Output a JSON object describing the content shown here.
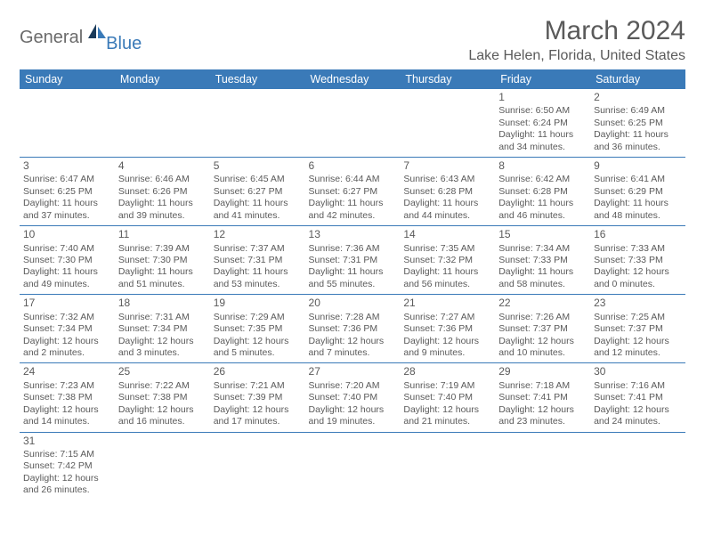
{
  "brand": {
    "general": "General",
    "blue": "Blue"
  },
  "title": "March 2024",
  "location": "Lake Helen, Florida, United States",
  "day_headers": [
    "Sunday",
    "Monday",
    "Tuesday",
    "Wednesday",
    "Thursday",
    "Friday",
    "Saturday"
  ],
  "colors": {
    "header_bg": "#3a7ab8",
    "header_fg": "#ffffff",
    "border": "#3a7ab8",
    "text": "#5a5a5a",
    "logo_gray": "#6b6b6b",
    "logo_blue": "#3a7ab8",
    "logo_dark": "#1a3a5a"
  },
  "first_weekday": 5,
  "days": [
    {
      "n": 1,
      "sunrise": "6:50 AM",
      "sunset": "6:24 PM",
      "daylight": "11 hours and 34 minutes."
    },
    {
      "n": 2,
      "sunrise": "6:49 AM",
      "sunset": "6:25 PM",
      "daylight": "11 hours and 36 minutes."
    },
    {
      "n": 3,
      "sunrise": "6:47 AM",
      "sunset": "6:25 PM",
      "daylight": "11 hours and 37 minutes."
    },
    {
      "n": 4,
      "sunrise": "6:46 AM",
      "sunset": "6:26 PM",
      "daylight": "11 hours and 39 minutes."
    },
    {
      "n": 5,
      "sunrise": "6:45 AM",
      "sunset": "6:27 PM",
      "daylight": "11 hours and 41 minutes."
    },
    {
      "n": 6,
      "sunrise": "6:44 AM",
      "sunset": "6:27 PM",
      "daylight": "11 hours and 42 minutes."
    },
    {
      "n": 7,
      "sunrise": "6:43 AM",
      "sunset": "6:28 PM",
      "daylight": "11 hours and 44 minutes."
    },
    {
      "n": 8,
      "sunrise": "6:42 AM",
      "sunset": "6:28 PM",
      "daylight": "11 hours and 46 minutes."
    },
    {
      "n": 9,
      "sunrise": "6:41 AM",
      "sunset": "6:29 PM",
      "daylight": "11 hours and 48 minutes."
    },
    {
      "n": 10,
      "sunrise": "7:40 AM",
      "sunset": "7:30 PM",
      "daylight": "11 hours and 49 minutes."
    },
    {
      "n": 11,
      "sunrise": "7:39 AM",
      "sunset": "7:30 PM",
      "daylight": "11 hours and 51 minutes."
    },
    {
      "n": 12,
      "sunrise": "7:37 AM",
      "sunset": "7:31 PM",
      "daylight": "11 hours and 53 minutes."
    },
    {
      "n": 13,
      "sunrise": "7:36 AM",
      "sunset": "7:31 PM",
      "daylight": "11 hours and 55 minutes."
    },
    {
      "n": 14,
      "sunrise": "7:35 AM",
      "sunset": "7:32 PM",
      "daylight": "11 hours and 56 minutes."
    },
    {
      "n": 15,
      "sunrise": "7:34 AM",
      "sunset": "7:33 PM",
      "daylight": "11 hours and 58 minutes."
    },
    {
      "n": 16,
      "sunrise": "7:33 AM",
      "sunset": "7:33 PM",
      "daylight": "12 hours and 0 minutes."
    },
    {
      "n": 17,
      "sunrise": "7:32 AM",
      "sunset": "7:34 PM",
      "daylight": "12 hours and 2 minutes."
    },
    {
      "n": 18,
      "sunrise": "7:31 AM",
      "sunset": "7:34 PM",
      "daylight": "12 hours and 3 minutes."
    },
    {
      "n": 19,
      "sunrise": "7:29 AM",
      "sunset": "7:35 PM",
      "daylight": "12 hours and 5 minutes."
    },
    {
      "n": 20,
      "sunrise": "7:28 AM",
      "sunset": "7:36 PM",
      "daylight": "12 hours and 7 minutes."
    },
    {
      "n": 21,
      "sunrise": "7:27 AM",
      "sunset": "7:36 PM",
      "daylight": "12 hours and 9 minutes."
    },
    {
      "n": 22,
      "sunrise": "7:26 AM",
      "sunset": "7:37 PM",
      "daylight": "12 hours and 10 minutes."
    },
    {
      "n": 23,
      "sunrise": "7:25 AM",
      "sunset": "7:37 PM",
      "daylight": "12 hours and 12 minutes."
    },
    {
      "n": 24,
      "sunrise": "7:23 AM",
      "sunset": "7:38 PM",
      "daylight": "12 hours and 14 minutes."
    },
    {
      "n": 25,
      "sunrise": "7:22 AM",
      "sunset": "7:38 PM",
      "daylight": "12 hours and 16 minutes."
    },
    {
      "n": 26,
      "sunrise": "7:21 AM",
      "sunset": "7:39 PM",
      "daylight": "12 hours and 17 minutes."
    },
    {
      "n": 27,
      "sunrise": "7:20 AM",
      "sunset": "7:40 PM",
      "daylight": "12 hours and 19 minutes."
    },
    {
      "n": 28,
      "sunrise": "7:19 AM",
      "sunset": "7:40 PM",
      "daylight": "12 hours and 21 minutes."
    },
    {
      "n": 29,
      "sunrise": "7:18 AM",
      "sunset": "7:41 PM",
      "daylight": "12 hours and 23 minutes."
    },
    {
      "n": 30,
      "sunrise": "7:16 AM",
      "sunset": "7:41 PM",
      "daylight": "12 hours and 24 minutes."
    },
    {
      "n": 31,
      "sunrise": "7:15 AM",
      "sunset": "7:42 PM",
      "daylight": "12 hours and 26 minutes."
    }
  ],
  "labels": {
    "sunrise": "Sunrise:",
    "sunset": "Sunset:",
    "daylight": "Daylight:"
  }
}
